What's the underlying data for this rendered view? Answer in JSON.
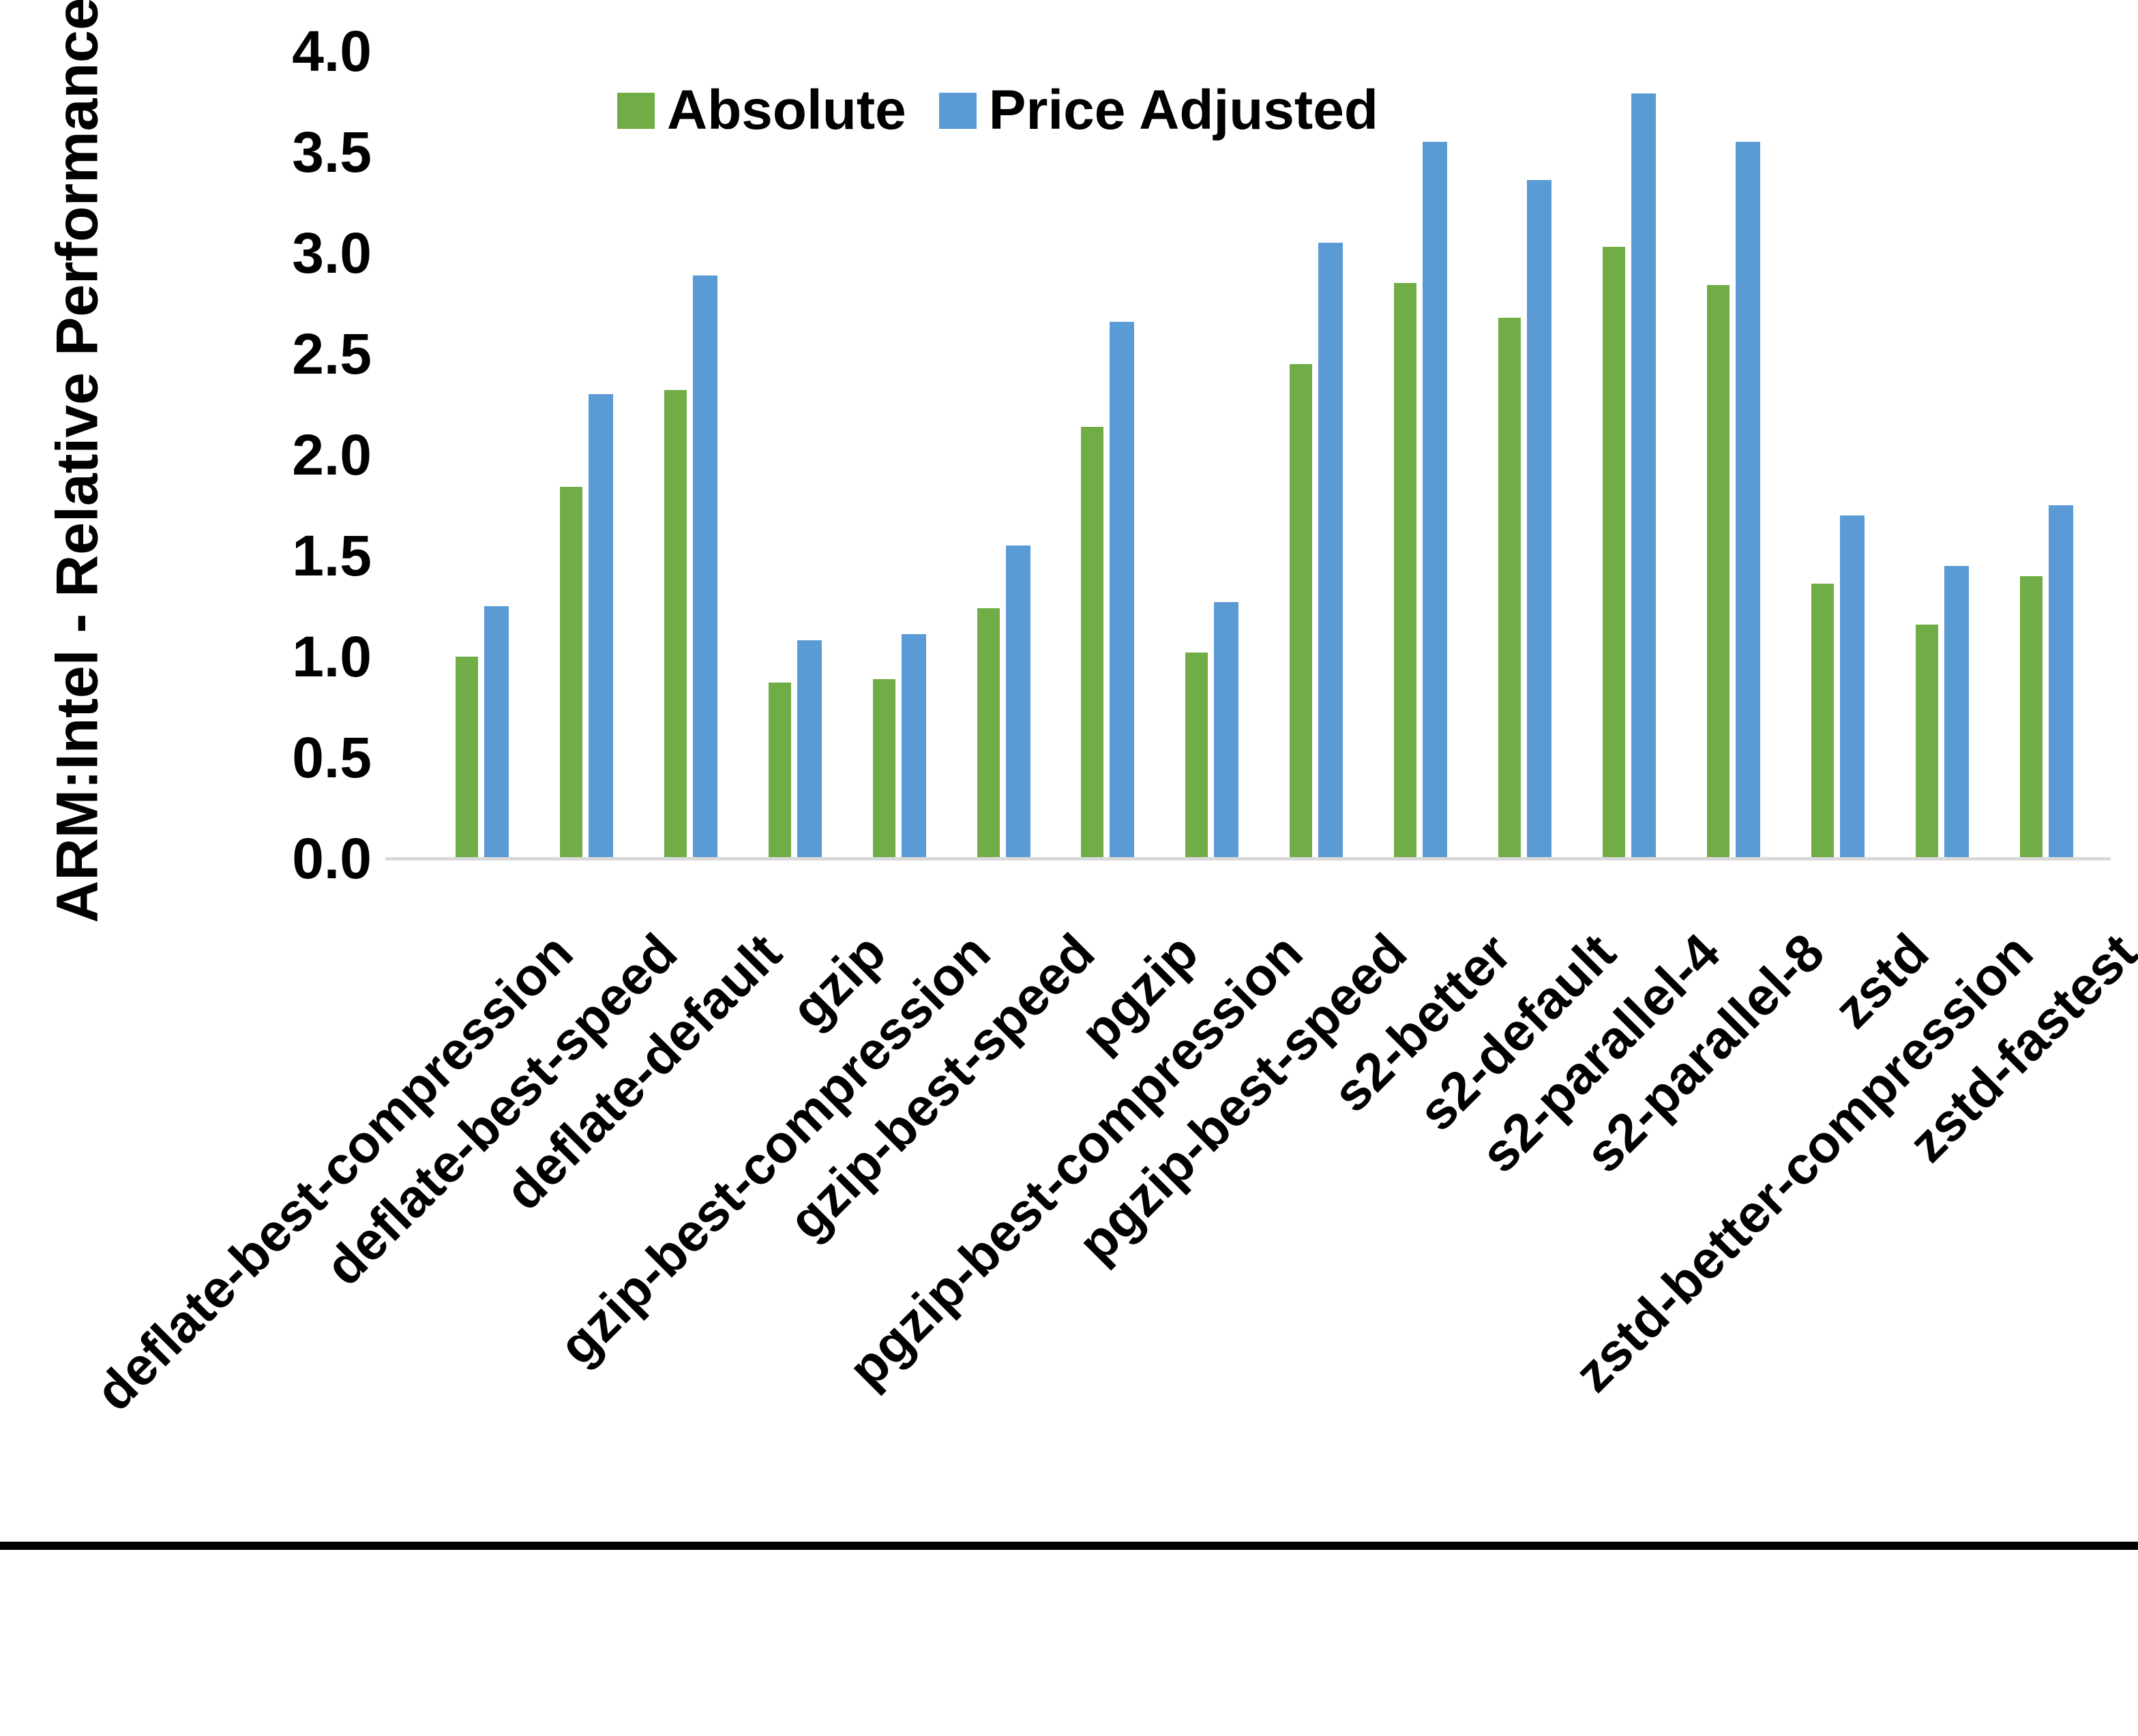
{
  "chart_data": {
    "type": "bar",
    "title": "",
    "xlabel": "",
    "ylabel": "ARM:Intel - Relative Performance",
    "ylim": [
      0.0,
      4.0
    ],
    "yticks": [
      "0.0",
      "0.5",
      "1.0",
      "1.5",
      "2.0",
      "2.5",
      "3.0",
      "3.5",
      "4.0"
    ],
    "grid": false,
    "legend_position": "top-center",
    "axis_line_color": "#d9d9d9",
    "categories": [
      "deflate-best-compression",
      "deflate-best-speed",
      "deflate-default",
      "gzip",
      "gzip-best-compression",
      "gzip-best-speed",
      "pgzip",
      "pgzip-best-compression",
      "pgzip-best-speed",
      "s2-better",
      "s2-default",
      "s2-parallel-4",
      "s2-parallel-8",
      "zstd",
      "zstd-better-compression",
      "zstd-fastest"
    ],
    "series": [
      {
        "name": "Absolute",
        "color": "#70AD47",
        "values": [
          1.0,
          1.84,
          2.32,
          0.87,
          0.89,
          1.24,
          2.14,
          1.02,
          2.45,
          2.85,
          2.68,
          3.03,
          2.84,
          1.36,
          1.16,
          1.4
        ]
      },
      {
        "name": "Price Adjusted",
        "color": "#5B9BD5",
        "values": [
          1.25,
          2.3,
          2.89,
          1.08,
          1.11,
          1.55,
          2.66,
          1.27,
          3.05,
          3.55,
          3.36,
          3.79,
          3.55,
          1.7,
          1.45,
          1.75
        ]
      }
    ]
  }
}
